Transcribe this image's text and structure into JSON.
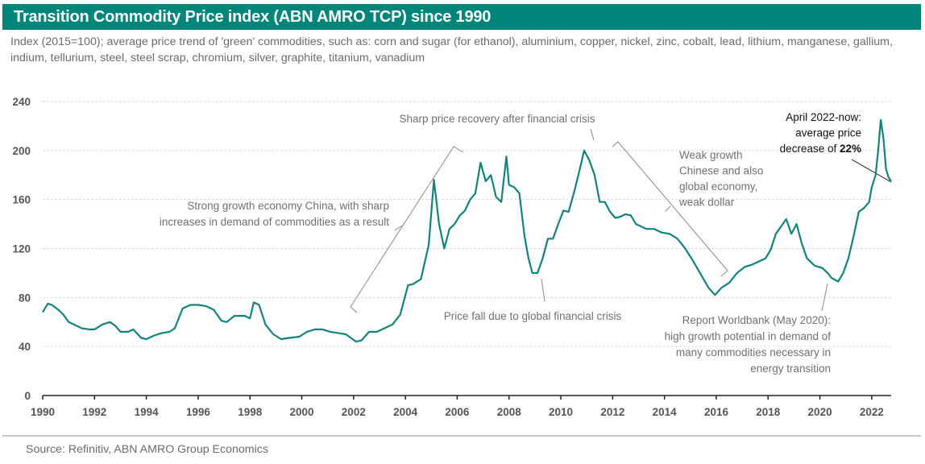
{
  "header": {
    "title": "Transition Commodity Price index (ABN AMRO TCP) since 1990",
    "subtitle": "Index (2015=100);  average price trend of 'green' commodities, such as: corn and sugar (for ethanol), aluminium, copper, nickel, zinc, cobalt, lead, lithium, manganese, gallium, indium, tellurium, steel, steel scrap, chromium, silver, graphite, titanium, vanadium"
  },
  "footer": {
    "source": "Source: Refinitiv, ABN AMRO Group Economics"
  },
  "colors": {
    "brand": "#00857a",
    "line": "#13837a",
    "grid": "#d9d9d9",
    "annotation": "#707070"
  },
  "chart_data": {
    "type": "line",
    "title": "Transition Commodity Price index (ABN AMRO TCP) since 1990",
    "xlabel": "",
    "ylabel": "Index (2015=100)",
    "xlim": [
      1990,
      2022.75
    ],
    "ylim": [
      0,
      240
    ],
    "grid": true,
    "legend": "none",
    "x_ticks": [
      "1990",
      "1992",
      "1994",
      "1996",
      "1998",
      "2000",
      "2002",
      "2004",
      "2006",
      "2008",
      "2010",
      "2012",
      "2014",
      "2016",
      "2018",
      "2020",
      "2022"
    ],
    "y_ticks": [
      "0",
      "40",
      "80",
      "120",
      "160",
      "200",
      "240"
    ],
    "series": [
      {
        "name": "ABN AMRO TCP",
        "x": [
          1990.0,
          1990.2,
          1990.35,
          1990.6,
          1990.8,
          1991.0,
          1991.2,
          1991.5,
          1991.8,
          1992.0,
          1992.3,
          1992.6,
          1992.8,
          1993.0,
          1993.3,
          1993.5,
          1993.8,
          1994.0,
          1994.3,
          1994.6,
          1994.9,
          1995.1,
          1995.4,
          1995.7,
          1996.0,
          1996.3,
          1996.6,
          1996.9,
          1997.1,
          1997.4,
          1997.8,
          1998.0,
          1998.15,
          1998.35,
          1998.6,
          1998.9,
          1999.2,
          1999.5,
          1999.9,
          2000.2,
          2000.5,
          2000.8,
          2001.1,
          2001.4,
          2001.7,
          2001.9,
          2002.1,
          2002.3,
          2002.6,
          2002.9,
          2003.2,
          2003.5,
          2003.8,
          2004.1,
          2004.3,
          2004.6,
          2004.9,
          2005.1,
          2005.3,
          2005.5,
          2005.7,
          2005.9,
          2006.1,
          2006.3,
          2006.5,
          2006.7,
          2006.9,
          2007.1,
          2007.3,
          2007.5,
          2007.7,
          2007.9,
          2008.0,
          2008.2,
          2008.4,
          2008.6,
          2008.75,
          2008.9,
          2009.1,
          2009.3,
          2009.5,
          2009.7,
          2009.9,
          2010.1,
          2010.3,
          2010.5,
          2010.7,
          2010.9,
          2011.1,
          2011.3,
          2011.5,
          2011.7,
          2011.9,
          2012.1,
          2012.3,
          2012.5,
          2012.7,
          2012.9,
          2013.1,
          2013.3,
          2013.6,
          2013.9,
          2014.2,
          2014.5,
          2014.8,
          2015.1,
          2015.4,
          2015.7,
          2015.95,
          2016.2,
          2016.5,
          2016.8,
          2017.1,
          2017.4,
          2017.7,
          2017.9,
          2018.1,
          2018.3,
          2018.5,
          2018.7,
          2018.9,
          2019.1,
          2019.3,
          2019.5,
          2019.8,
          2020.1,
          2020.3,
          2020.45,
          2020.7,
          2020.9,
          2021.1,
          2021.3,
          2021.5,
          2021.7,
          2021.9,
          2022.0,
          2022.15,
          2022.25,
          2022.35,
          2022.45,
          2022.55,
          2022.65,
          2022.75
        ],
        "values": [
          68,
          75,
          74,
          70,
          66,
          60,
          58,
          55,
          54,
          54,
          58,
          60,
          57,
          52,
          52,
          54,
          47,
          46,
          49,
          51,
          52,
          55,
          71,
          74,
          74,
          73,
          70,
          61,
          60,
          65,
          65,
          63,
          76,
          74,
          58,
          50,
          46,
          47,
          48,
          52,
          54,
          54,
          52,
          51,
          50,
          47,
          44,
          45,
          52,
          52,
          55,
          58,
          66,
          90,
          91,
          95,
          123,
          176,
          140,
          120,
          136,
          140,
          147,
          151,
          160,
          165,
          190,
          175,
          180,
          162,
          158,
          195,
          172,
          170,
          165,
          130,
          112,
          100,
          100,
          112,
          128,
          128,
          140,
          151,
          150,
          165,
          182,
          200,
          192,
          180,
          158,
          158,
          150,
          145,
          146,
          148,
          147,
          140,
          138,
          136,
          136,
          133,
          132,
          128,
          120,
          110,
          99,
          88,
          82,
          88,
          92,
          100,
          105,
          107,
          110,
          112,
          119,
          132,
          138,
          144,
          132,
          140,
          124,
          112,
          106,
          104,
          100,
          96,
          93,
          100,
          112,
          130,
          150,
          153,
          158,
          170,
          180,
          200,
          225,
          210,
          185,
          178,
          175
        ]
      }
    ],
    "annotations": [
      {
        "text": "Strong growth economy China, with sharp increases in demand of commodities as a result",
        "lines": [
          "Strong growth economy China, with sharp",
          "increases in demand of commodities as a result"
        ]
      },
      {
        "text": "Sharp price recovery after financial crisis",
        "lines": [
          "Sharp price recovery after financial crisis"
        ]
      },
      {
        "text": "Price fall due to global financial crisis",
        "lines": [
          "Price fall due to global financial crisis"
        ]
      },
      {
        "text": "Weak growth Chinese and also global economy, weak dollar",
        "lines": [
          "Weak growth",
          "Chinese and also",
          "global economy,",
          "weak dollar"
        ]
      },
      {
        "text": "Report Worldbank (May 2020): high growth potential in demand of many commodities necessary in energy transition",
        "lines": [
          "Report Worldbank (May 2020):",
          "high growth potential in demand of",
          "many commodities necessary in",
          "energy transition"
        ]
      },
      {
        "text": "April 2022-now: average price decrease of 22%",
        "lines": [
          "April 2022-now:",
          "average price",
          "decrease of "
        ],
        "emphasis": "22%"
      }
    ]
  }
}
